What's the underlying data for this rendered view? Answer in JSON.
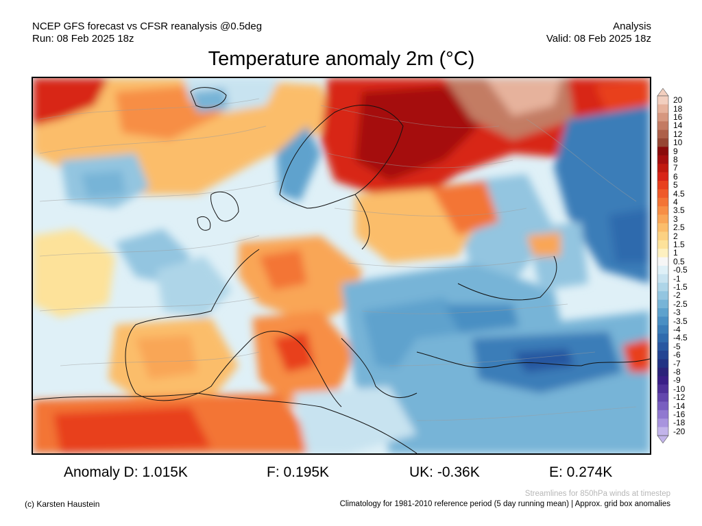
{
  "header": {
    "model_line": "NCEP GFS forecast vs CFSR reanalysis @0.5deg",
    "run_line": "Run: 08 Feb 2025 18z",
    "type_line": "Analysis",
    "valid_line": "Valid: 08 Feb 2025 18z"
  },
  "title": "Temperature anomaly 2m (°C)",
  "stats": {
    "d": "Anomaly D: 1.015K",
    "f": "F: 0.195K",
    "uk": "UK: -0.36K",
    "e": "E: 0.274K"
  },
  "footer": {
    "copyright": "(c) Karsten Haustein",
    "streamlines_note": "Streamlines for 850hPa winds at timestep",
    "climatology_note": "Climatology for 1981-2010 reference period (5 day running mean) | Approx. grid box anomalies"
  },
  "colorbar": {
    "labels": [
      "20",
      "18",
      "16",
      "14",
      "12",
      "10",
      "9",
      "8",
      "7",
      "6",
      "5",
      "4.5",
      "4",
      "3.5",
      "3",
      "2.5",
      "2",
      "1.5",
      "1",
      "0.5",
      "-0.5",
      "-1",
      "-1.5",
      "-2",
      "-2.5",
      "-3",
      "-3.5",
      "-4",
      "-4.5",
      "-5",
      "-6",
      "-7",
      "-8",
      "-9",
      "-10",
      "-12",
      "-14",
      "-16",
      "-18",
      "-20"
    ],
    "colors": [
      "#f2cfbf",
      "#e6b29c",
      "#d6977f",
      "#c37b63",
      "#ad6049",
      "#964633",
      "#8a0b0b",
      "#a50f0f",
      "#c0190f",
      "#d82518",
      "#e8401e",
      "#ef5a29",
      "#f37435",
      "#f78e45",
      "#f9a657",
      "#fbbd6b",
      "#fcd182",
      "#fde29a",
      "#fdf0c0",
      "#f6f6f6",
      "#dff0f7",
      "#c8e3f0",
      "#aed5e8",
      "#93c5e0",
      "#77b4d7",
      "#5ea2cd",
      "#4a8fc3",
      "#3b7db8",
      "#2f6bad",
      "#2857a0",
      "#234492",
      "#223384",
      "#2b237a",
      "#3a1f87",
      "#4f3199",
      "#6447ad",
      "#795fc0",
      "#9078d0",
      "#a894de",
      "#c2b4ea"
    ]
  }
}
